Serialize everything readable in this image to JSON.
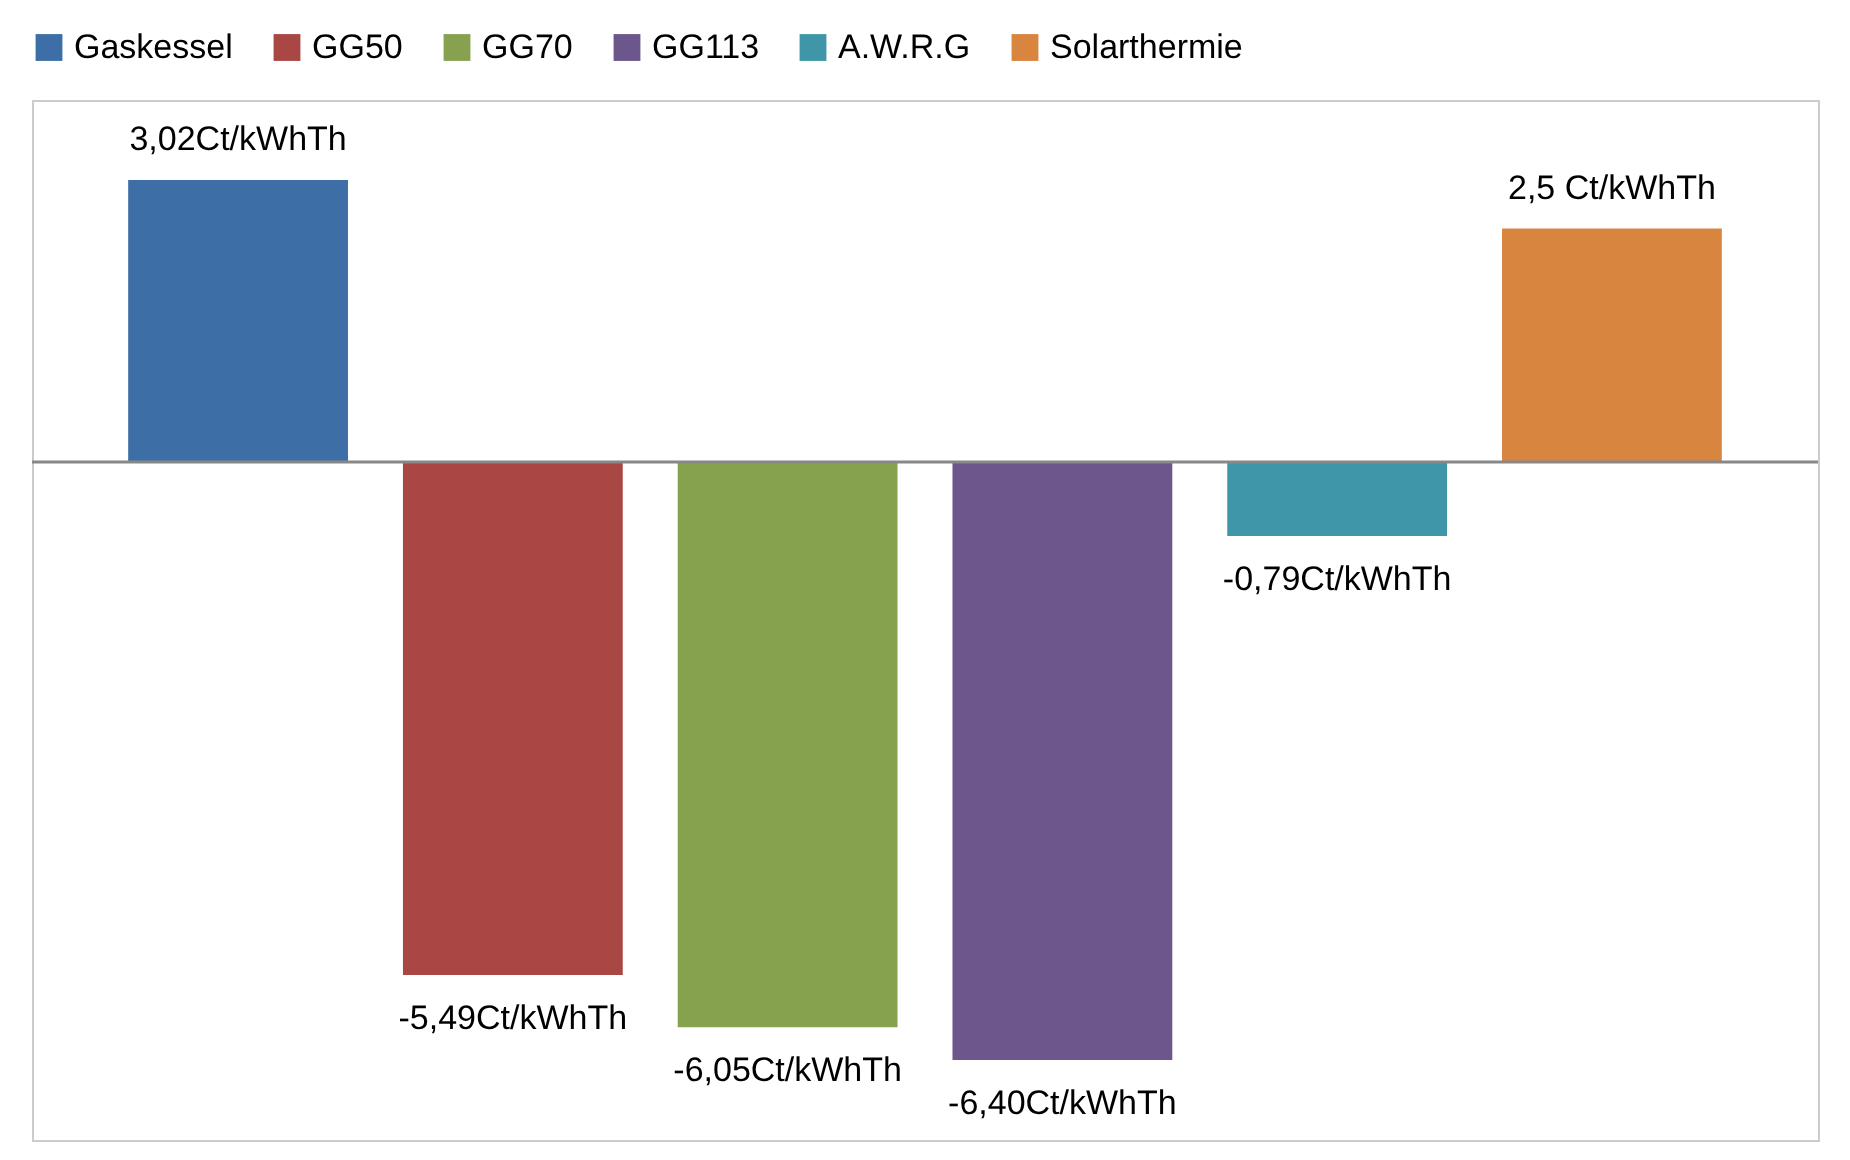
{
  "chart_data": {
    "type": "bar",
    "categories": [
      null
    ],
    "legend": "top",
    "series": [
      {
        "name": "Gaskessel",
        "color": "#3d6ea6",
        "values": [
          3.02
        ],
        "value_labels": [
          "3,02Ct/kWhTh"
        ]
      },
      {
        "name": "GG50",
        "color": "#a84743",
        "values": [
          -5.49
        ],
        "value_labels": [
          "-5,49Ct/kWhTh"
        ]
      },
      {
        "name": "GG70",
        "color": "#87a24e",
        "values": [
          -6.05
        ],
        "value_labels": [
          "-6,05Ct/kWhTh"
        ]
      },
      {
        "name": "GG113",
        "color": "#6d568b",
        "values": [
          -6.4
        ],
        "value_labels": [
          "-6,40Ct/kWhTh"
        ]
      },
      {
        "name": "A.W.R.G",
        "color": "#3f96a9",
        "values": [
          -0.79
        ],
        "value_labels": [
          "-0,79Ct/kWhTh"
        ]
      },
      {
        "name": "Solarthermie",
        "color": "#d88540",
        "values": [
          2.5
        ],
        "value_labels": [
          "2,5 Ct/kWhTh"
        ]
      }
    ]
  }
}
